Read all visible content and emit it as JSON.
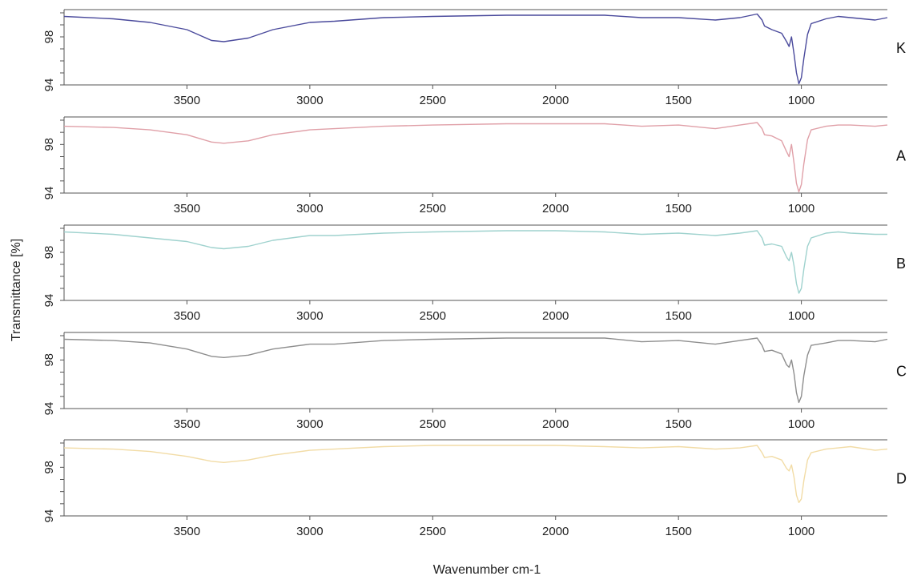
{
  "chart_data": {
    "type": "line",
    "xlabel": "Wavenumber cm-1",
    "ylabel": "Transmittance [%]",
    "xlim": [
      4000,
      650
    ],
    "ylim": [
      94,
      100
    ],
    "x_ticks": [
      3500,
      3000,
      2500,
      2000,
      1500,
      1000
    ],
    "y_ticks": [
      94,
      98
    ],
    "legend": "none",
    "grid": false,
    "series": [
      {
        "name": "K",
        "color": "#4a4a9c",
        "points": [
          [
            4000,
            99.7
          ],
          [
            3800,
            99.5
          ],
          [
            3650,
            99.2
          ],
          [
            3500,
            98.6
          ],
          [
            3400,
            97.7
          ],
          [
            3350,
            97.6
          ],
          [
            3250,
            97.9
          ],
          [
            3150,
            98.6
          ],
          [
            3000,
            99.2
          ],
          [
            2900,
            99.3
          ],
          [
            2700,
            99.6
          ],
          [
            2500,
            99.7
          ],
          [
            2200,
            99.8
          ],
          [
            2000,
            99.8
          ],
          [
            1800,
            99.8
          ],
          [
            1650,
            99.6
          ],
          [
            1500,
            99.6
          ],
          [
            1350,
            99.4
          ],
          [
            1250,
            99.6
          ],
          [
            1180,
            99.9
          ],
          [
            1160,
            99.4
          ],
          [
            1150,
            98.9
          ],
          [
            1120,
            98.6
          ],
          [
            1080,
            98.3
          ],
          [
            1060,
            97.6
          ],
          [
            1050,
            97.2
          ],
          [
            1040,
            98.0
          ],
          [
            1030,
            96.6
          ],
          [
            1020,
            95.0
          ],
          [
            1010,
            94.1
          ],
          [
            1000,
            94.6
          ],
          [
            990,
            96.2
          ],
          [
            975,
            98.2
          ],
          [
            960,
            99.1
          ],
          [
            900,
            99.5
          ],
          [
            850,
            99.7
          ],
          [
            800,
            99.6
          ],
          [
            700,
            99.4
          ],
          [
            650,
            99.6
          ]
        ]
      },
      {
        "name": "A",
        "color": "#e0a0a8",
        "points": [
          [
            4000,
            99.5
          ],
          [
            3800,
            99.4
          ],
          [
            3650,
            99.2
          ],
          [
            3500,
            98.8
          ],
          [
            3400,
            98.2
          ],
          [
            3350,
            98.1
          ],
          [
            3250,
            98.3
          ],
          [
            3150,
            98.8
          ],
          [
            3000,
            99.2
          ],
          [
            2900,
            99.3
          ],
          [
            2700,
            99.5
          ],
          [
            2500,
            99.6
          ],
          [
            2200,
            99.7
          ],
          [
            2000,
            99.7
          ],
          [
            1800,
            99.7
          ],
          [
            1650,
            99.5
          ],
          [
            1500,
            99.6
          ],
          [
            1350,
            99.3
          ],
          [
            1250,
            99.6
          ],
          [
            1180,
            99.8
          ],
          [
            1160,
            99.3
          ],
          [
            1150,
            98.8
          ],
          [
            1120,
            98.7
          ],
          [
            1080,
            98.3
          ],
          [
            1060,
            97.4
          ],
          [
            1050,
            97.0
          ],
          [
            1040,
            98.0
          ],
          [
            1030,
            96.5
          ],
          [
            1020,
            94.8
          ],
          [
            1010,
            94.1
          ],
          [
            1000,
            94.7
          ],
          [
            990,
            96.4
          ],
          [
            975,
            98.4
          ],
          [
            960,
            99.2
          ],
          [
            900,
            99.5
          ],
          [
            850,
            99.6
          ],
          [
            800,
            99.6
          ],
          [
            700,
            99.5
          ],
          [
            650,
            99.6
          ]
        ]
      },
      {
        "name": "B",
        "color": "#9fd2ce",
        "points": [
          [
            4000,
            99.7
          ],
          [
            3800,
            99.5
          ],
          [
            3650,
            99.2
          ],
          [
            3500,
            98.9
          ],
          [
            3400,
            98.4
          ],
          [
            3350,
            98.3
          ],
          [
            3250,
            98.5
          ],
          [
            3150,
            99.0
          ],
          [
            3000,
            99.4
          ],
          [
            2900,
            99.4
          ],
          [
            2700,
            99.6
          ],
          [
            2500,
            99.7
          ],
          [
            2200,
            99.8
          ],
          [
            2000,
            99.8
          ],
          [
            1800,
            99.7
          ],
          [
            1650,
            99.5
          ],
          [
            1500,
            99.6
          ],
          [
            1350,
            99.4
          ],
          [
            1250,
            99.6
          ],
          [
            1180,
            99.8
          ],
          [
            1160,
            99.2
          ],
          [
            1150,
            98.6
          ],
          [
            1120,
            98.7
          ],
          [
            1080,
            98.5
          ],
          [
            1060,
            97.6
          ],
          [
            1050,
            97.3
          ],
          [
            1040,
            98.0
          ],
          [
            1030,
            96.9
          ],
          [
            1020,
            95.4
          ],
          [
            1010,
            94.6
          ],
          [
            1000,
            95.0
          ],
          [
            990,
            96.6
          ],
          [
            975,
            98.5
          ],
          [
            960,
            99.2
          ],
          [
            900,
            99.6
          ],
          [
            850,
            99.7
          ],
          [
            800,
            99.6
          ],
          [
            700,
            99.5
          ],
          [
            650,
            99.5
          ]
        ]
      },
      {
        "name": "C",
        "color": "#8e8e8e",
        "points": [
          [
            4000,
            99.7
          ],
          [
            3800,
            99.6
          ],
          [
            3650,
            99.4
          ],
          [
            3500,
            98.9
          ],
          [
            3400,
            98.3
          ],
          [
            3350,
            98.2
          ],
          [
            3250,
            98.4
          ],
          [
            3150,
            98.9
          ],
          [
            3000,
            99.3
          ],
          [
            2900,
            99.3
          ],
          [
            2700,
            99.6
          ],
          [
            2500,
            99.7
          ],
          [
            2200,
            99.8
          ],
          [
            2000,
            99.8
          ],
          [
            1800,
            99.8
          ],
          [
            1650,
            99.5
          ],
          [
            1500,
            99.6
          ],
          [
            1350,
            99.3
          ],
          [
            1250,
            99.6
          ],
          [
            1180,
            99.8
          ],
          [
            1160,
            99.2
          ],
          [
            1150,
            98.7
          ],
          [
            1120,
            98.8
          ],
          [
            1080,
            98.5
          ],
          [
            1060,
            97.6
          ],
          [
            1050,
            97.4
          ],
          [
            1040,
            98.0
          ],
          [
            1030,
            96.9
          ],
          [
            1020,
            95.3
          ],
          [
            1010,
            94.5
          ],
          [
            1000,
            95.0
          ],
          [
            990,
            96.7
          ],
          [
            975,
            98.4
          ],
          [
            960,
            99.2
          ],
          [
            900,
            99.4
          ],
          [
            850,
            99.6
          ],
          [
            800,
            99.6
          ],
          [
            700,
            99.5
          ],
          [
            650,
            99.7
          ]
        ]
      },
      {
        "name": "D",
        "color": "#f2dca6",
        "points": [
          [
            4000,
            99.6
          ],
          [
            3800,
            99.5
          ],
          [
            3650,
            99.3
          ],
          [
            3500,
            98.9
          ],
          [
            3400,
            98.5
          ],
          [
            3350,
            98.4
          ],
          [
            3250,
            98.6
          ],
          [
            3150,
            99.0
          ],
          [
            3000,
            99.4
          ],
          [
            2900,
            99.5
          ],
          [
            2700,
            99.7
          ],
          [
            2500,
            99.8
          ],
          [
            2200,
            99.8
          ],
          [
            2000,
            99.8
          ],
          [
            1800,
            99.7
          ],
          [
            1650,
            99.6
          ],
          [
            1500,
            99.7
          ],
          [
            1350,
            99.5
          ],
          [
            1250,
            99.6
          ],
          [
            1180,
            99.8
          ],
          [
            1160,
            99.2
          ],
          [
            1150,
            98.8
          ],
          [
            1120,
            98.9
          ],
          [
            1080,
            98.6
          ],
          [
            1060,
            97.9
          ],
          [
            1050,
            97.7
          ],
          [
            1040,
            98.2
          ],
          [
            1030,
            97.2
          ],
          [
            1020,
            95.7
          ],
          [
            1010,
            95.1
          ],
          [
            1000,
            95.4
          ],
          [
            990,
            96.9
          ],
          [
            975,
            98.6
          ],
          [
            960,
            99.2
          ],
          [
            900,
            99.5
          ],
          [
            850,
            99.6
          ],
          [
            800,
            99.7
          ],
          [
            700,
            99.4
          ],
          [
            650,
            99.5
          ]
        ]
      }
    ]
  }
}
